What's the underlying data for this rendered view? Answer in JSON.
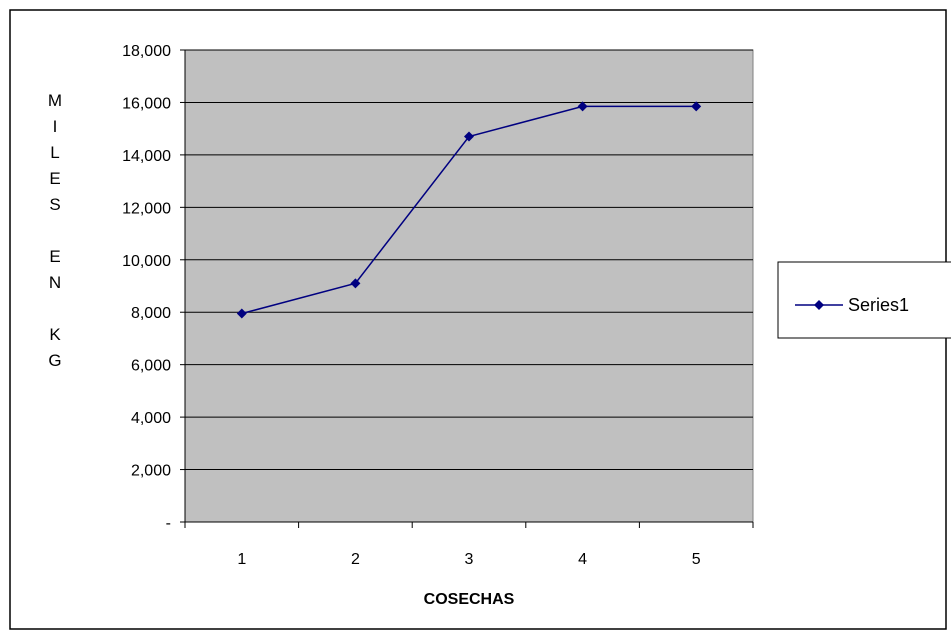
{
  "chart_data": {
    "type": "line",
    "title": "",
    "xlabel": "COSECHAS",
    "ylabel_letters": [
      "M",
      "I",
      "L",
      "E",
      "S",
      "",
      "E",
      "N",
      "",
      "K",
      "G"
    ],
    "categories": [
      "1",
      "2",
      "3",
      "4",
      "5"
    ],
    "y_tick_labels": [
      "-",
      "2,000",
      "4,000",
      "6,000",
      "8,000",
      "10,000",
      "12,000",
      "14,000",
      "16,000",
      "18,000"
    ],
    "ylim": [
      0,
      18000
    ],
    "y_step": 2000,
    "grid": true,
    "legend_position": "right",
    "series": [
      {
        "name": "Series1",
        "values": [
          7950,
          9100,
          14700,
          15850,
          15850
        ]
      }
    ],
    "colors": {
      "plot_background": "#c0c0c0",
      "series_line": "#000080",
      "gridline": "#000000"
    }
  }
}
